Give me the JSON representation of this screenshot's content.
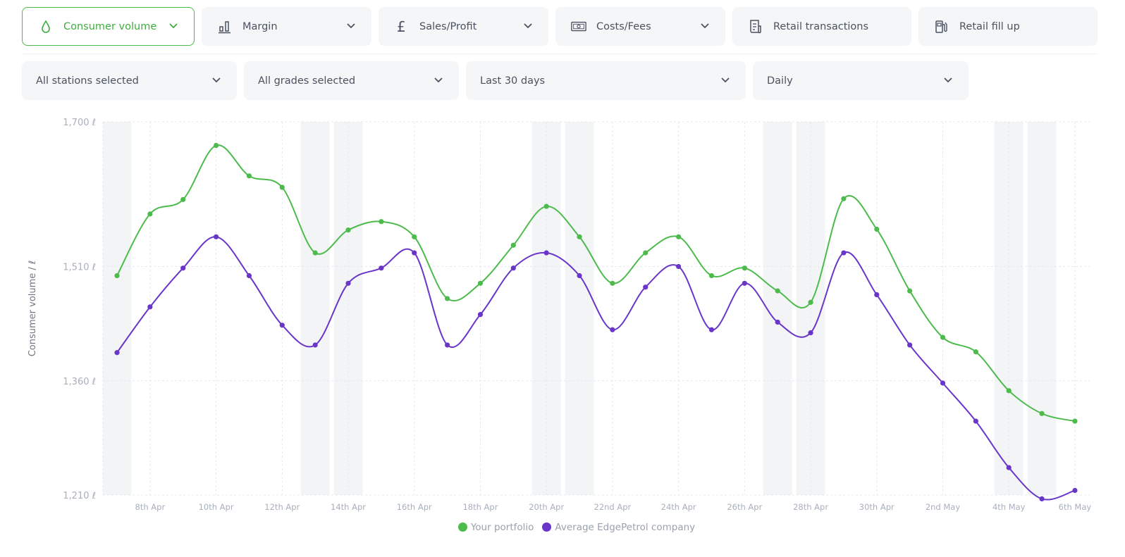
{
  "tabs": [
    {
      "label": "Consumer volume",
      "icon": "droplet-icon",
      "active": true,
      "dropdown": true
    },
    {
      "label": "Margin",
      "icon": "bar-chart-icon",
      "dropdown": true
    },
    {
      "label": "Sales/Profit",
      "icon": "pound-icon",
      "dropdown": true
    },
    {
      "label": "Costs/Fees",
      "icon": "banknote-icon",
      "dropdown": true
    },
    {
      "label": "Retail transactions",
      "icon": "receipt-icon",
      "dropdown": false
    },
    {
      "label": "Retail fill up",
      "icon": "fuel-pump-icon",
      "dropdown": false
    }
  ],
  "filters": [
    {
      "label": "All stations selected"
    },
    {
      "label": "All grades selected"
    },
    {
      "label": "Last 30 days"
    },
    {
      "label": "Daily"
    }
  ],
  "colors": {
    "accent": "#4cbb4c",
    "portfolio": "#4cbb4c",
    "average": "#6a35c9",
    "weekend_band": "#f3f4f6"
  },
  "chart_data": {
    "type": "line",
    "ylabel": "Consumer volume / ℓ",
    "ylim": [
      1210,
      1700
    ],
    "yticks": [
      {
        "value": 1210,
        "label": "1,210 ℓ"
      },
      {
        "value": 1360,
        "label": "1,360 ℓ"
      },
      {
        "value": 1510,
        "label": "1,510 ℓ"
      },
      {
        "value": 1700,
        "label": "1,700 ℓ"
      }
    ],
    "x": [
      "7 Apr",
      "8 Apr",
      "9 Apr",
      "10 Apr",
      "11 Apr",
      "12 Apr",
      "13 Apr",
      "14 Apr",
      "15 Apr",
      "16 Apr",
      "17 Apr",
      "18 Apr",
      "19 Apr",
      "20 Apr",
      "21 Apr",
      "22 Apr",
      "23 Apr",
      "24 Apr",
      "25 Apr",
      "26 Apr",
      "27 Apr",
      "28 Apr",
      "29 Apr",
      "30 Apr",
      "1 May",
      "2 May",
      "3 May",
      "4 May",
      "5 May",
      "6 May"
    ],
    "xtick_labels": [
      "8th Apr",
      "10th Apr",
      "12th Apr",
      "14th Apr",
      "16th Apr",
      "18th Apr",
      "20th Apr",
      "22nd Apr",
      "24th Apr",
      "26th Apr",
      "28th Apr",
      "30th Apr",
      "2nd May",
      "4th May",
      "6th May"
    ],
    "weekend_bands": [
      "7 Apr",
      "13 Apr",
      "14 Apr",
      "20 Apr",
      "21 Apr",
      "27 Apr",
      "28 Apr",
      "4 May",
      "5 May"
    ],
    "grid": true,
    "legend_position": "bottom",
    "series": [
      {
        "name": "Your portfolio",
        "color": "#4cbb4c",
        "values": [
          1498,
          1579,
          1598,
          1669,
          1629,
          1614,
          1528,
          1558,
          1569,
          1549,
          1468,
          1488,
          1538,
          1589,
          1549,
          1488,
          1528,
          1549,
          1498,
          1508,
          1478,
          1463,
          1599,
          1559,
          1478,
          1417,
          1398,
          1347,
          1317,
          1307
        ]
      },
      {
        "name": "Average EdgePetrol company",
        "color": "#6a35c9",
        "values": [
          1397,
          1457,
          1508,
          1549,
          1498,
          1433,
          1407,
          1488,
          1508,
          1528,
          1407,
          1447,
          1508,
          1528,
          1498,
          1427,
          1483,
          1510,
          1427,
          1488,
          1437,
          1423,
          1528,
          1473,
          1407,
          1357,
          1307,
          1246,
          1205,
          1216
        ]
      }
    ]
  }
}
